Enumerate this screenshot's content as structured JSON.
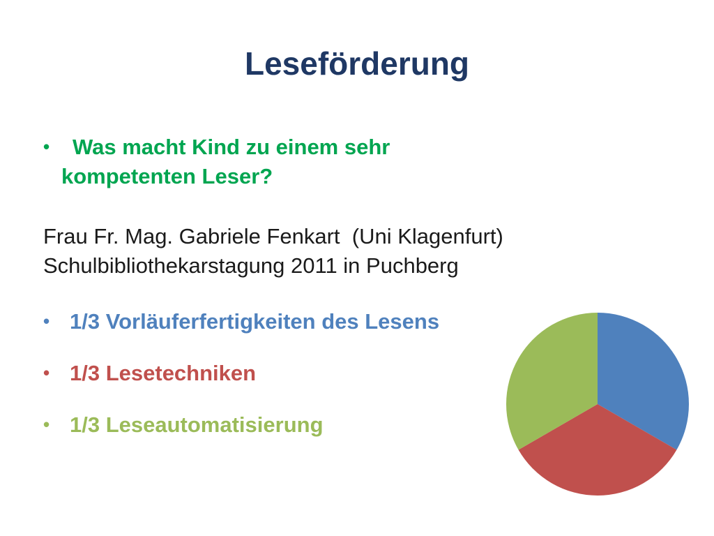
{
  "slide": {
    "title": "Leseförderung",
    "question_line1": "Was macht Kind zu einem sehr",
    "question_line2": "kompetenten Leser?",
    "source_line1": "Frau Fr. Mag. Gabriele Fenkart  (Uni Klagenfurt)",
    "source_line2": "Schulbibliothekarstagung 2011 in Puchberg",
    "bullet_char": "•",
    "items": [
      {
        "label": "1/3  Vorläuferfertigkeiten des Lesens",
        "color": "#4F81BD"
      },
      {
        "label": "1/3  Lesetechniken",
        "color": "#C0504D"
      },
      {
        "label": "1/3  Leseautomatisierung",
        "color": "#9BBB59"
      }
    ]
  },
  "chart_data": {
    "type": "pie",
    "slices": [
      {
        "label": "Vorläuferfertigkeiten des Lesens",
        "value": 0.3333,
        "color": "#4F81BD"
      },
      {
        "label": "Lesetechniken",
        "value": 0.3333,
        "color": "#C0504D"
      },
      {
        "label": "Leseautomatisierung",
        "value": 0.3333,
        "color": "#9BBB59"
      }
    ],
    "start_angle_deg": 0,
    "direction": "clockwise",
    "legend": "none"
  }
}
